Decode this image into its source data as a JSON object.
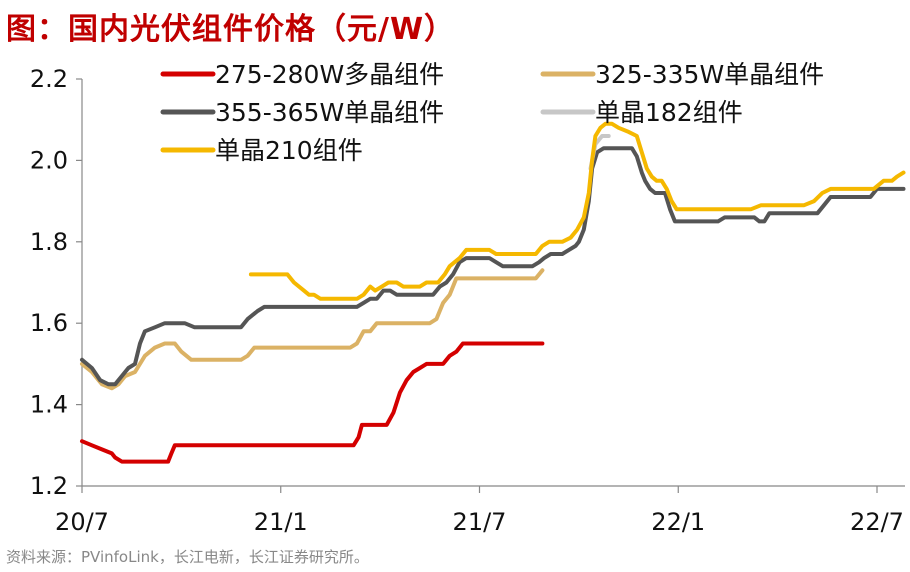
{
  "title": "图：国内光伏组件价格（元/W）",
  "source": "资料来源：PVinfoLink，长江电新，长江证券研究所。",
  "chart_data": {
    "type": "line",
    "title": "图：国内光伏组件价格（元/W）",
    "ylim": [
      1.2,
      2.2
    ],
    "yticks": [
      1.2,
      1.4,
      1.6,
      1.8,
      2.0,
      2.2
    ],
    "ytick_labels": [
      "1.2",
      "1.4",
      "1.6",
      "1.8",
      "2.0",
      "2.2"
    ],
    "xlim": [
      0,
      24.8
    ],
    "xticks": [
      0,
      6,
      12,
      18,
      24
    ],
    "xtick_labels": [
      "20/7",
      "21/1",
      "21/7",
      "22/1",
      "22/7"
    ],
    "x_unit_note": "months since 2020-07",
    "grid": false,
    "legend_position": "top",
    "series": [
      {
        "name": "275-280W多晶组件",
        "color": "#d40000",
        "points": [
          [
            0.0,
            1.31
          ],
          [
            0.3,
            1.3
          ],
          [
            0.6,
            1.29
          ],
          [
            0.9,
            1.28
          ],
          [
            1.0,
            1.27
          ],
          [
            1.2,
            1.26
          ],
          [
            2.0,
            1.26
          ],
          [
            2.6,
            1.26
          ],
          [
            2.3,
            1.26
          ],
          [
            2.2,
            1.26
          ],
          [
            2.3,
            1.26
          ],
          [
            2.45,
            1.26
          ],
          [
            2.6,
            1.26
          ],
          [
            2.7,
            1.28
          ],
          [
            2.8,
            1.3
          ],
          [
            3.2,
            1.3
          ],
          [
            6.0,
            1.3
          ],
          [
            8.0,
            1.3
          ],
          [
            8.2,
            1.3
          ],
          [
            8.35,
            1.32
          ],
          [
            8.45,
            1.35
          ],
          [
            8.8,
            1.35
          ],
          [
            9.0,
            1.35
          ],
          [
            9.2,
            1.35
          ],
          [
            9.4,
            1.38
          ],
          [
            9.6,
            1.43
          ],
          [
            9.8,
            1.46
          ],
          [
            10.0,
            1.48
          ],
          [
            10.2,
            1.49
          ],
          [
            10.4,
            1.5
          ],
          [
            10.7,
            1.5
          ],
          [
            10.9,
            1.5
          ],
          [
            11.1,
            1.52
          ],
          [
            11.3,
            1.53
          ],
          [
            11.5,
            1.55
          ],
          [
            12.0,
            1.55
          ],
          [
            12.9,
            1.55
          ],
          [
            13.9,
            1.55
          ]
        ]
      },
      {
        "name": "325-335W单晶组件",
        "color": "#dbb265",
        "points": [
          [
            0.0,
            1.5
          ],
          [
            0.3,
            1.48
          ],
          [
            0.6,
            1.45
          ],
          [
            0.9,
            1.44
          ],
          [
            1.1,
            1.45
          ],
          [
            1.3,
            1.47
          ],
          [
            1.6,
            1.48
          ],
          [
            1.9,
            1.52
          ],
          [
            2.2,
            1.54
          ],
          [
            2.5,
            1.55
          ],
          [
            2.8,
            1.55
          ],
          [
            3.0,
            1.53
          ],
          [
            3.3,
            1.51
          ],
          [
            3.6,
            1.51
          ],
          [
            4.5,
            1.51
          ],
          [
            4.8,
            1.51
          ],
          [
            5.0,
            1.52
          ],
          [
            5.2,
            1.54
          ],
          [
            5.5,
            1.54
          ],
          [
            6.5,
            1.54
          ],
          [
            8.0,
            1.54
          ],
          [
            8.1,
            1.54
          ],
          [
            8.3,
            1.55
          ],
          [
            8.5,
            1.58
          ],
          [
            8.7,
            1.58
          ],
          [
            8.9,
            1.6
          ],
          [
            9.1,
            1.6
          ],
          [
            10.5,
            1.6
          ],
          [
            10.7,
            1.61
          ],
          [
            10.9,
            1.65
          ],
          [
            11.1,
            1.67
          ],
          [
            11.3,
            1.71
          ],
          [
            11.6,
            1.71
          ],
          [
            13.5,
            1.71
          ],
          [
            13.7,
            1.71
          ],
          [
            13.9,
            1.73
          ]
        ]
      },
      {
        "name": "355-365W单晶组件",
        "color": "#555555",
        "points": [
          [
            0.0,
            1.51
          ],
          [
            0.3,
            1.49
          ],
          [
            0.55,
            1.46
          ],
          [
            0.8,
            1.45
          ],
          [
            1.0,
            1.45
          ],
          [
            1.2,
            1.47
          ],
          [
            1.4,
            1.49
          ],
          [
            1.6,
            1.5
          ],
          [
            1.75,
            1.55
          ],
          [
            1.9,
            1.58
          ],
          [
            2.2,
            1.59
          ],
          [
            2.5,
            1.6
          ],
          [
            2.9,
            1.6
          ],
          [
            3.1,
            1.6
          ],
          [
            3.4,
            1.59
          ],
          [
            4.5,
            1.59
          ],
          [
            4.8,
            1.59
          ],
          [
            5.0,
            1.61
          ],
          [
            5.3,
            1.63
          ],
          [
            5.5,
            1.64
          ],
          [
            6.0,
            1.64
          ],
          [
            8.1,
            1.64
          ],
          [
            8.3,
            1.64
          ],
          [
            8.5,
            1.65
          ],
          [
            8.7,
            1.66
          ],
          [
            8.9,
            1.66
          ],
          [
            9.1,
            1.68
          ],
          [
            9.3,
            1.68
          ],
          [
            9.5,
            1.67
          ],
          [
            10.4,
            1.67
          ],
          [
            10.6,
            1.67
          ],
          [
            10.8,
            1.69
          ],
          [
            11.0,
            1.7
          ],
          [
            11.2,
            1.72
          ],
          [
            11.4,
            1.75
          ],
          [
            11.6,
            1.76
          ],
          [
            12.0,
            1.76
          ],
          [
            12.3,
            1.76
          ],
          [
            12.5,
            1.75
          ],
          [
            12.7,
            1.74
          ],
          [
            13.2,
            1.74
          ],
          [
            13.6,
            1.74
          ],
          [
            13.8,
            1.75
          ],
          [
            13.95,
            1.76
          ],
          [
            14.15,
            1.77
          ],
          [
            14.5,
            1.77
          ],
          [
            14.7,
            1.78
          ],
          [
            14.9,
            1.79
          ],
          [
            15.0,
            1.8
          ],
          [
            15.15,
            1.83
          ],
          [
            15.3,
            1.9
          ],
          [
            15.4,
            1.98
          ],
          [
            15.55,
            2.02
          ],
          [
            15.75,
            2.03
          ],
          [
            16.1,
            2.03
          ],
          [
            16.4,
            2.03
          ],
          [
            16.6,
            2.03
          ],
          [
            16.75,
            2.01
          ],
          [
            16.9,
            1.97
          ],
          [
            17.0,
            1.95
          ],
          [
            17.15,
            1.93
          ],
          [
            17.3,
            1.92
          ],
          [
            17.45,
            1.92
          ],
          [
            17.6,
            1.92
          ],
          [
            17.75,
            1.88
          ],
          [
            17.9,
            1.85
          ],
          [
            18.1,
            1.85
          ],
          [
            19.0,
            1.85
          ],
          [
            19.2,
            1.85
          ],
          [
            19.4,
            1.86
          ],
          [
            20.1,
            1.86
          ],
          [
            20.3,
            1.86
          ],
          [
            20.45,
            1.85
          ],
          [
            20.6,
            1.85
          ],
          [
            20.75,
            1.87
          ],
          [
            20.95,
            1.87
          ],
          [
            22.0,
            1.87
          ],
          [
            22.2,
            1.87
          ],
          [
            22.4,
            1.89
          ],
          [
            22.6,
            1.91
          ],
          [
            23.2,
            1.91
          ],
          [
            23.8,
            1.91
          ],
          [
            24.0,
            1.93
          ],
          [
            24.3,
            1.93
          ],
          [
            24.8,
            1.93
          ]
        ]
      },
      {
        "name": "单晶182组件",
        "color": "#c7c7c7",
        "points": [
          [
            15.35,
            1.98
          ],
          [
            15.5,
            2.04
          ],
          [
            15.7,
            2.06
          ],
          [
            15.9,
            2.06
          ]
        ]
      },
      {
        "name": "单晶210组件",
        "color": "#f5b800",
        "points": [
          [
            5.1,
            1.72
          ],
          [
            5.7,
            1.72
          ],
          [
            6.2,
            1.72
          ],
          [
            6.4,
            1.7
          ],
          [
            6.7,
            1.68
          ],
          [
            6.85,
            1.67
          ],
          [
            7.0,
            1.67
          ],
          [
            7.2,
            1.66
          ],
          [
            7.5,
            1.66
          ],
          [
            8.1,
            1.66
          ],
          [
            8.3,
            1.66
          ],
          [
            8.5,
            1.67
          ],
          [
            8.7,
            1.69
          ],
          [
            8.85,
            1.68
          ],
          [
            9.05,
            1.69
          ],
          [
            9.25,
            1.7
          ],
          [
            9.5,
            1.7
          ],
          [
            9.7,
            1.69
          ],
          [
            10.0,
            1.69
          ],
          [
            10.2,
            1.69
          ],
          [
            10.4,
            1.7
          ],
          [
            10.6,
            1.7
          ],
          [
            10.75,
            1.7
          ],
          [
            10.95,
            1.72
          ],
          [
            11.1,
            1.74
          ],
          [
            11.4,
            1.76
          ],
          [
            11.6,
            1.78
          ],
          [
            12.0,
            1.78
          ],
          [
            12.3,
            1.78
          ],
          [
            12.5,
            1.77
          ],
          [
            12.7,
            1.77
          ],
          [
            13.5,
            1.77
          ],
          [
            13.7,
            1.77
          ],
          [
            13.9,
            1.79
          ],
          [
            14.1,
            1.8
          ],
          [
            14.5,
            1.8
          ],
          [
            14.75,
            1.81
          ],
          [
            14.95,
            1.83
          ],
          [
            15.15,
            1.86
          ],
          [
            15.3,
            1.92
          ],
          [
            15.4,
            2.0
          ],
          [
            15.5,
            2.06
          ],
          [
            15.65,
            2.08
          ],
          [
            15.8,
            2.09
          ],
          [
            16.0,
            2.09
          ],
          [
            16.2,
            2.08
          ],
          [
            16.5,
            2.07
          ],
          [
            16.75,
            2.06
          ],
          [
            16.9,
            2.02
          ],
          [
            17.05,
            1.98
          ],
          [
            17.2,
            1.96
          ],
          [
            17.35,
            1.95
          ],
          [
            17.5,
            1.95
          ],
          [
            17.65,
            1.93
          ],
          [
            17.8,
            1.9
          ],
          [
            17.95,
            1.88
          ],
          [
            18.2,
            1.88
          ],
          [
            19.5,
            1.88
          ],
          [
            19.8,
            1.88
          ],
          [
            20.0,
            1.88
          ],
          [
            20.2,
            1.88
          ],
          [
            20.5,
            1.89
          ],
          [
            21.1,
            1.89
          ],
          [
            21.5,
            1.89
          ],
          [
            21.8,
            1.89
          ],
          [
            22.1,
            1.9
          ],
          [
            22.35,
            1.92
          ],
          [
            22.6,
            1.93
          ],
          [
            23.5,
            1.93
          ],
          [
            23.9,
            1.93
          ],
          [
            24.2,
            1.95
          ],
          [
            24.45,
            1.95
          ],
          [
            24.6,
            1.96
          ],
          [
            24.8,
            1.97
          ]
        ]
      }
    ]
  }
}
